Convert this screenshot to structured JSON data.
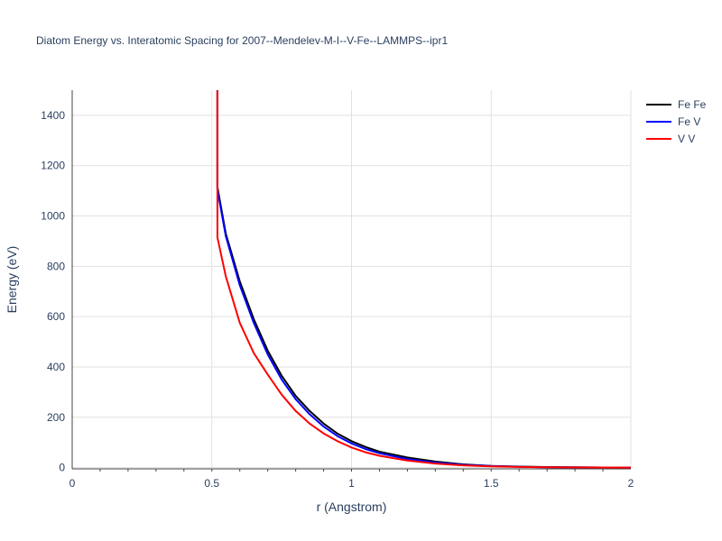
{
  "chart_data": {
    "type": "line",
    "title": "Diatom Energy vs. Interatomic Spacing for 2007--Mendelev-M-I--V-Fe--LAMMPS--ipr1",
    "xlabel": "r (Angstrom)",
    "ylabel": "Energy (eV)",
    "xlim": [
      0,
      2
    ],
    "ylim": [
      -5,
      1500
    ],
    "x_ticks": [
      0,
      0.5,
      1,
      1.5,
      2
    ],
    "x_tick_labels": [
      "0",
      "0.5",
      "1",
      "1.5",
      "2"
    ],
    "y_ticks": [
      0,
      200,
      400,
      600,
      800,
      1000,
      1200,
      1400
    ],
    "y_tick_labels": [
      "0",
      "200",
      "400",
      "600",
      "800",
      "1000",
      "1200",
      "1400"
    ],
    "grid": true,
    "legend_position": "top-right",
    "series": [
      {
        "name": "Fe Fe",
        "color": "#000000",
        "x": [
          0.52,
          0.52,
          0.55,
          0.6,
          0.65,
          0.7,
          0.75,
          0.8,
          0.85,
          0.9,
          0.95,
          1.0,
          1.05,
          1.1,
          1.2,
          1.3,
          1.4,
          1.5,
          1.6,
          1.7,
          1.8,
          1.9,
          2.0
        ],
        "y": [
          1500,
          1115,
          930,
          740,
          590,
          465,
          365,
          285,
          225,
          175,
          135,
          105,
          82,
          63,
          40,
          24,
          13,
          7,
          4,
          2,
          1,
          0.5,
          0
        ]
      },
      {
        "name": "Fe V",
        "color": "#0000ff",
        "x": [
          0.52,
          0.52,
          0.55,
          0.6,
          0.65,
          0.7,
          0.75,
          0.8,
          0.85,
          0.9,
          0.95,
          1.0,
          1.05,
          1.1,
          1.2,
          1.3,
          1.4,
          1.5,
          1.6,
          1.7,
          1.8,
          1.9,
          2.0
        ],
        "y": [
          1500,
          1105,
          920,
          725,
          575,
          450,
          350,
          272,
          212,
          163,
          125,
          96,
          74,
          57,
          34,
          20,
          11,
          6,
          3,
          1.5,
          0.8,
          0.3,
          0
        ]
      },
      {
        "name": "V V",
        "color": "#ff0000",
        "x": [
          0.52,
          0.52,
          0.55,
          0.6,
          0.65,
          0.7,
          0.75,
          0.8,
          0.85,
          0.9,
          0.95,
          1.0,
          1.05,
          1.1,
          1.2,
          1.3,
          1.4,
          1.5,
          1.6,
          1.7,
          1.8,
          1.9,
          2.0
        ],
        "y": [
          1500,
          915,
          760,
          575,
          455,
          370,
          290,
          225,
          175,
          136,
          105,
          80,
          61,
          47,
          28,
          16,
          9,
          5,
          2.5,
          1.2,
          0.6,
          0.2,
          0
        ]
      }
    ]
  }
}
